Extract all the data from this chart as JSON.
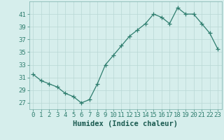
{
  "x": [
    0,
    1,
    2,
    3,
    4,
    5,
    6,
    7,
    8,
    9,
    10,
    11,
    12,
    13,
    14,
    15,
    16,
    17,
    18,
    19,
    20,
    21,
    22,
    23
  ],
  "y": [
    31.5,
    30.5,
    30.0,
    29.5,
    28.5,
    28.0,
    27.0,
    27.5,
    30.0,
    33.0,
    34.5,
    36.0,
    37.5,
    38.5,
    39.5,
    41.0,
    40.5,
    39.5,
    42.0,
    41.0,
    41.0,
    39.5,
    38.0,
    35.5
  ],
  "line_color": "#2e7d6e",
  "marker": "+",
  "marker_size": 4,
  "bg_color": "#d6eeec",
  "grid_color": "#b8d8d5",
  "tick_label_color": "#2e7d6e",
  "xlabel": "Humidex (Indice chaleur)",
  "xlabel_color": "#1a5a50",
  "xlabel_fontsize": 7.5,
  "ylim": [
    26,
    43
  ],
  "xlim": [
    -0.5,
    23.5
  ],
  "yticks": [
    27,
    29,
    31,
    33,
    35,
    37,
    39,
    41
  ],
  "xticks": [
    0,
    1,
    2,
    3,
    4,
    5,
    6,
    7,
    8,
    9,
    10,
    11,
    12,
    13,
    14,
    15,
    16,
    17,
    18,
    19,
    20,
    21,
    22,
    23
  ],
  "tick_fontsize": 6.5
}
